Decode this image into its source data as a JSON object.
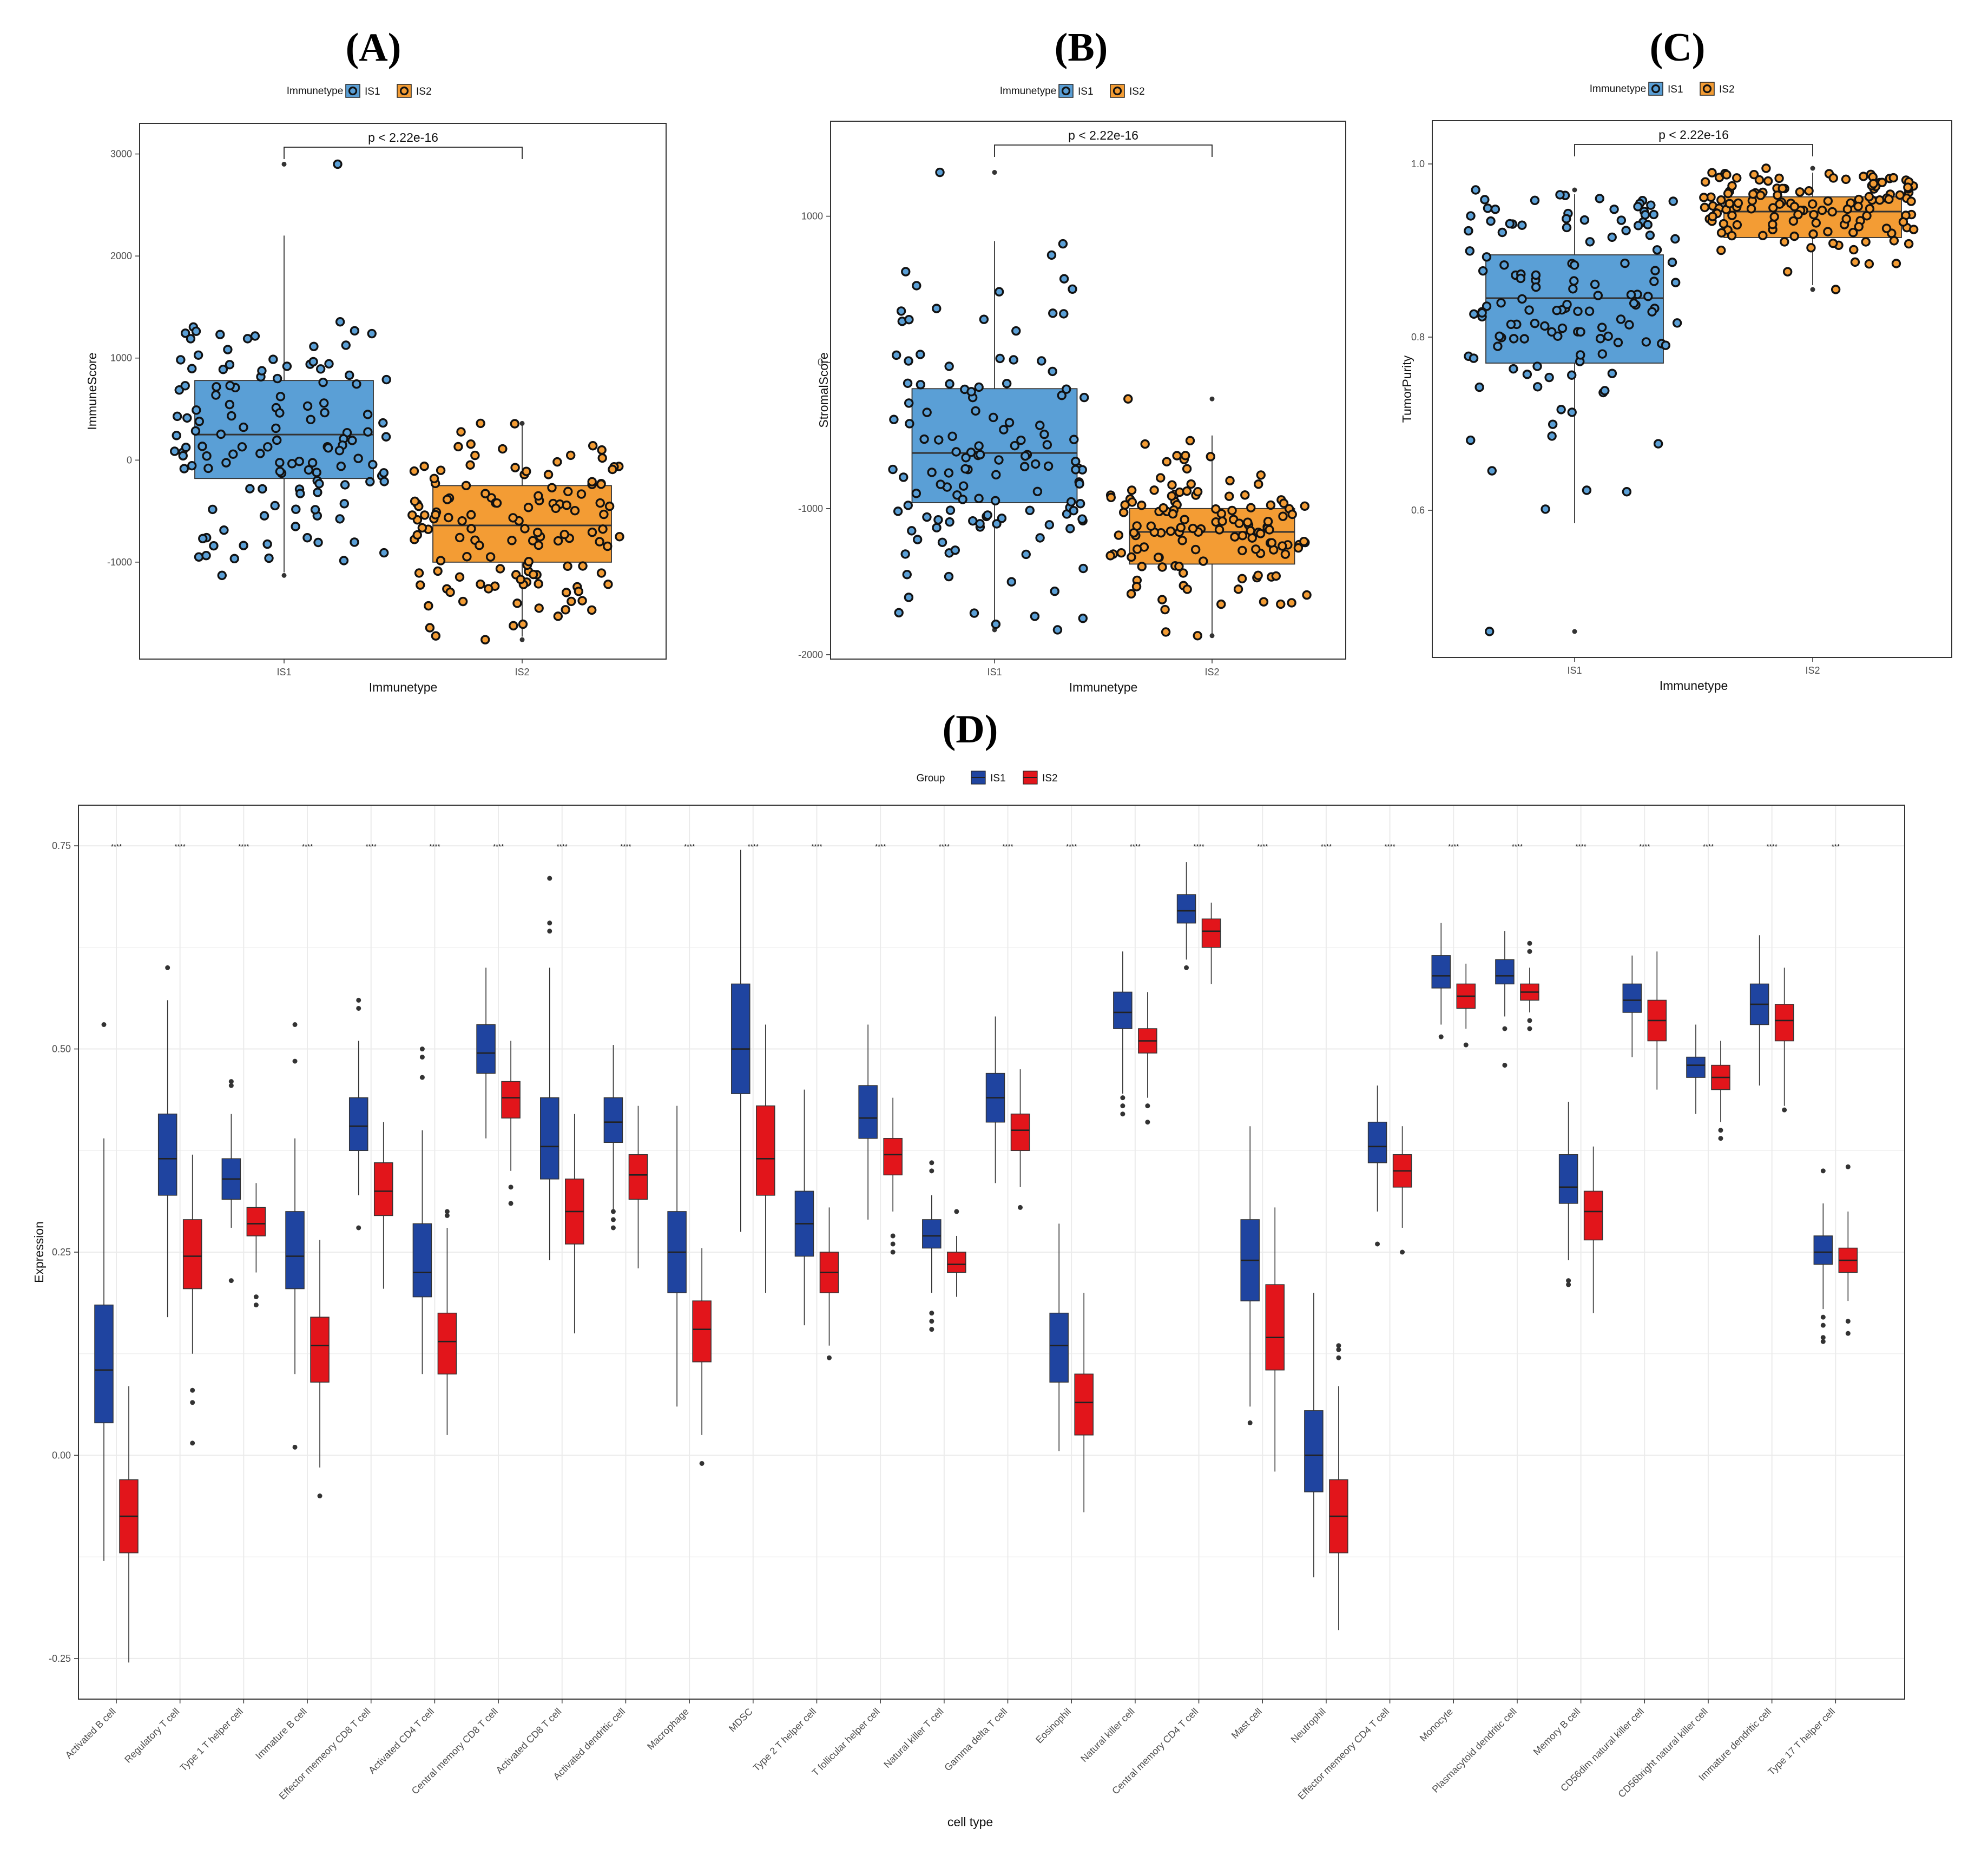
{
  "colors": {
    "is1_light": "#5a9fd6",
    "is2_light": "#f39c34",
    "is1_dark": "#1f44a0",
    "is2_dark": "#e2151b",
    "panel_border": "#333333",
    "grid": "#ebebeb"
  },
  "chart_data": [
    {
      "id": "A",
      "panel_label": "(A)",
      "type": "box",
      "legend_title": "Immunetype",
      "legend_items": [
        "IS1",
        "IS2"
      ],
      "categories": [
        "IS1",
        "IS2"
      ],
      "xlabel": "Immunetype",
      "ylabel": "ImmuneScore",
      "ylim": [
        -1950,
        3300
      ],
      "yticks": [
        -1000,
        0,
        1000,
        2000,
        3000
      ],
      "pvalue": "p < 2.22e-16",
      "boxes": [
        {
          "group": "IS1",
          "q1": -180,
          "median": 250,
          "q3": 780,
          "whisker_low": -1100,
          "whisker_high": 2200,
          "n": 130,
          "min": -1130,
          "max": 2900
        },
        {
          "group": "IS2",
          "q1": -1000,
          "median": -640,
          "q3": -250,
          "whisker_low": -1730,
          "whisker_high": 360,
          "n": 130,
          "min": -1760,
          "max": 360
        }
      ]
    },
    {
      "id": "B",
      "panel_label": "(B)",
      "type": "box",
      "legend_title": "Immunetype",
      "legend_items": [
        "IS1",
        "IS2"
      ],
      "categories": [
        "IS1",
        "IS2"
      ],
      "xlabel": "Immunetype",
      "ylabel": "StromalScore",
      "ylim": [
        -2030,
        1650
      ],
      "yticks": [
        -2000,
        -1000,
        0,
        1000
      ],
      "pvalue": "p < 2.22e-16",
      "boxes": [
        {
          "group": "IS1",
          "q1": -960,
          "median": -620,
          "q3": -180,
          "whisker_low": -1830,
          "whisker_high": 830,
          "n": 130,
          "min": -1830,
          "max": 1300
        },
        {
          "group": "IS2",
          "q1": -1380,
          "median": -1160,
          "q3": -1000,
          "whisker_low": -1870,
          "whisker_high": -500,
          "n": 130,
          "min": -1870,
          "max": -250
        }
      ]
    },
    {
      "id": "C",
      "panel_label": "(C)",
      "type": "box",
      "legend_title": "Immunetype",
      "legend_items": [
        "IS1",
        "IS2"
      ],
      "categories": [
        "IS1",
        "IS2"
      ],
      "xlabel": "Immunetype",
      "ylabel": "TumorPurity",
      "ylim": [
        0.43,
        1.05
      ],
      "yticks": [
        0.6,
        0.8,
        1.0
      ],
      "ytick_labels": [
        "0.6",
        "0.8",
        "1.0"
      ],
      "pvalue": "p < 2.22e-16",
      "boxes": [
        {
          "group": "IS1",
          "q1": 0.77,
          "median": 0.845,
          "q3": 0.895,
          "whisker_low": 0.585,
          "whisker_high": 0.965,
          "n": 130,
          "min": 0.46,
          "max": 0.97
        },
        {
          "group": "IS2",
          "q1": 0.915,
          "median": 0.945,
          "q3": 0.962,
          "whisker_low": 0.86,
          "whisker_high": 0.99,
          "n": 130,
          "min": 0.855,
          "max": 0.995
        }
      ]
    },
    {
      "id": "D",
      "panel_label": "(D)",
      "type": "grouped-box",
      "legend_title": "Group",
      "legend_items": [
        "IS1",
        "IS2"
      ],
      "xlabel": "cell type",
      "ylabel": "Expression",
      "ylim": [
        -0.3,
        0.8
      ],
      "yticks": [
        -0.25,
        0.0,
        0.25,
        0.5,
        0.75
      ],
      "ytick_labels": [
        "-0.25",
        "0.00",
        "0.25",
        "0.50",
        "0.75"
      ],
      "categories": [
        "Activated B cell",
        "Regulatory T cell",
        "Type 1 T helper cell",
        "Immature  B cell",
        "Effector memeory CD8 T cell",
        "Activated CD4 T cell",
        "Central memory CD8 T cell",
        "Activated CD8 T cell",
        "Activated dendritic cell",
        "Macrophage",
        "MDSC",
        "Type 2 T helper cell",
        "T follicular helper cell",
        "Natural killer T cell",
        "Gamma delta T cell",
        "Eosinophil",
        "Natural killer cell",
        "Central memory CD4 T cell",
        "Mast cell",
        "Neutrophil",
        "Effector memeory CD4 T cell",
        "Monocyte",
        "Plasmacytoid dendritic cell",
        "Memory B cell",
        "CD56dim natural killer cell",
        "CD56bright natural killer cell",
        "Immature dendritic cell",
        "Type 17 T helper cell"
      ],
      "significance": [
        "****",
        "****",
        "****",
        "****",
        "****",
        "****",
        "****",
        "****",
        "****",
        "****",
        "****",
        "****",
        "****",
        "****",
        "****",
        "****",
        "****",
        "****",
        "****",
        "****",
        "****",
        "****",
        "****",
        "****",
        "****",
        "****",
        "****",
        "***"
      ],
      "series": [
        {
          "name": "IS1",
          "boxes": [
            [
              -0.13,
              0.04,
              0.105,
              0.185,
              0.39
            ],
            [
              0.17,
              0.32,
              0.365,
              0.42,
              0.56
            ],
            [
              0.28,
              0.315,
              0.34,
              0.365,
              0.42
            ],
            [
              0.1,
              0.205,
              0.245,
              0.3,
              0.39
            ],
            [
              0.32,
              0.375,
              0.405,
              0.44,
              0.51
            ],
            [
              0.1,
              0.195,
              0.225,
              0.285,
              0.4
            ],
            [
              0.39,
              0.47,
              0.495,
              0.53,
              0.6
            ],
            [
              0.24,
              0.34,
              0.38,
              0.44,
              0.6
            ],
            [
              0.3,
              0.385,
              0.41,
              0.44,
              0.505
            ],
            [
              0.06,
              0.2,
              0.25,
              0.3,
              0.43
            ],
            [
              0.275,
              0.445,
              0.5,
              0.58,
              0.745
            ],
            [
              0.16,
              0.245,
              0.285,
              0.325,
              0.45
            ],
            [
              0.29,
              0.39,
              0.415,
              0.455,
              0.53
            ],
            [
              0.2,
              0.255,
              0.27,
              0.29,
              0.32
            ],
            [
              0.335,
              0.41,
              0.44,
              0.47,
              0.54
            ],
            [
              0.005,
              0.09,
              0.135,
              0.175,
              0.285
            ],
            [
              0.445,
              0.525,
              0.545,
              0.57,
              0.62
            ],
            [
              0.61,
              0.655,
              0.67,
              0.69,
              0.73
            ],
            [
              0.06,
              0.19,
              0.24,
              0.29,
              0.405
            ],
            [
              -0.15,
              -0.045,
              0.0,
              0.055,
              0.2
            ],
            [
              0.3,
              0.36,
              0.38,
              0.41,
              0.455
            ],
            [
              0.53,
              0.575,
              0.59,
              0.615,
              0.655
            ],
            [
              0.54,
              0.58,
              0.59,
              0.61,
              0.645
            ],
            [
              0.24,
              0.31,
              0.33,
              0.37,
              0.435
            ],
            [
              0.49,
              0.545,
              0.56,
              0.58,
              0.615
            ],
            [
              0.42,
              0.465,
              0.48,
              0.49,
              0.53
            ],
            [
              0.455,
              0.53,
              0.555,
              0.58,
              0.64
            ],
            [
              0.18,
              0.235,
              0.25,
              0.27,
              0.31
            ]
          ],
          "outliers": [
            [
              0.53
            ],
            [
              0.6
            ],
            [
              0.455,
              0.46,
              0.215
            ],
            [
              0.53,
              0.485,
              0.01
            ],
            [
              0.56,
              0.55,
              0.28
            ],
            [
              0.5,
              0.49,
              0.465
            ],
            [],
            [
              0.71,
              0.655,
              0.645
            ],
            [
              0.3,
              0.29,
              0.28
            ],
            [],
            [],
            [],
            [],
            [
              0.36,
              0.35,
              0.175,
              0.165,
              0.155
            ],
            [],
            [],
            [
              0.44,
              0.43,
              0.42
            ],
            [
              0.6
            ],
            [
              0.04
            ],
            [],
            [
              0.26
            ],
            [
              0.515
            ],
            [
              0.525,
              0.48
            ],
            [
              0.215,
              0.21
            ],
            [],
            [],
            [],
            [
              0.35,
              0.17,
              0.16,
              0.145,
              0.14
            ]
          ]
        },
        {
          "name": "IS2",
          "boxes": [
            [
              -0.255,
              -0.12,
              -0.075,
              -0.03,
              0.085
            ],
            [
              0.125,
              0.205,
              0.245,
              0.29,
              0.37
            ],
            [
              0.225,
              0.27,
              0.285,
              0.305,
              0.335
            ],
            [
              -0.015,
              0.09,
              0.135,
              0.17,
              0.265
            ],
            [
              0.205,
              0.295,
              0.325,
              0.36,
              0.41
            ],
            [
              0.025,
              0.1,
              0.14,
              0.175,
              0.28
            ],
            [
              0.35,
              0.415,
              0.44,
              0.46,
              0.51
            ],
            [
              0.15,
              0.26,
              0.3,
              0.34,
              0.42
            ],
            [
              0.23,
              0.315,
              0.345,
              0.37,
              0.43
            ],
            [
              0.025,
              0.115,
              0.155,
              0.19,
              0.255
            ],
            [
              0.2,
              0.32,
              0.365,
              0.43,
              0.53
            ],
            [
              0.135,
              0.2,
              0.225,
              0.25,
              0.305
            ],
            [
              0.3,
              0.345,
              0.37,
              0.39,
              0.44
            ],
            [
              0.195,
              0.225,
              0.235,
              0.25,
              0.27
            ],
            [
              0.33,
              0.375,
              0.4,
              0.42,
              0.475
            ],
            [
              -0.07,
              0.025,
              0.065,
              0.1,
              0.2
            ],
            [
              0.44,
              0.495,
              0.51,
              0.525,
              0.57
            ],
            [
              0.58,
              0.625,
              0.645,
              0.66,
              0.68
            ],
            [
              -0.02,
              0.105,
              0.145,
              0.21,
              0.305
            ],
            [
              -0.215,
              -0.12,
              -0.075,
              -0.03,
              0.085
            ],
            [
              0.28,
              0.33,
              0.35,
              0.37,
              0.405
            ],
            [
              0.525,
              0.55,
              0.565,
              0.58,
              0.605
            ],
            [
              0.545,
              0.56,
              0.57,
              0.58,
              0.6
            ],
            [
              0.175,
              0.265,
              0.3,
              0.325,
              0.38
            ],
            [
              0.45,
              0.51,
              0.535,
              0.56,
              0.62
            ],
            [
              0.41,
              0.45,
              0.465,
              0.48,
              0.51
            ],
            [
              0.43,
              0.51,
              0.535,
              0.555,
              0.6
            ],
            [
              0.19,
              0.225,
              0.24,
              0.255,
              0.3
            ]
          ],
          "outliers": [
            [],
            [
              0.08,
              0.065,
              0.015
            ],
            [
              0.195,
              0.185
            ],
            [
              -0.05
            ],
            [],
            [
              0.3,
              0.295
            ],
            [
              0.33,
              0.31
            ],
            [],
            [],
            [
              -0.01
            ],
            [],
            [
              0.12
            ],
            [
              0.27,
              0.26,
              0.25
            ],
            [
              0.3
            ],
            [
              0.305
            ],
            [],
            [
              0.43,
              0.41
            ],
            [],
            [],
            [
              0.135,
              0.13,
              0.12
            ],
            [
              0.25
            ],
            [
              0.505
            ],
            [
              0.63,
              0.62,
              0.535,
              0.525
            ],
            [],
            [],
            [
              0.4,
              0.39
            ],
            [
              0.425
            ],
            [
              0.355,
              0.165,
              0.15
            ]
          ]
        }
      ]
    }
  ]
}
